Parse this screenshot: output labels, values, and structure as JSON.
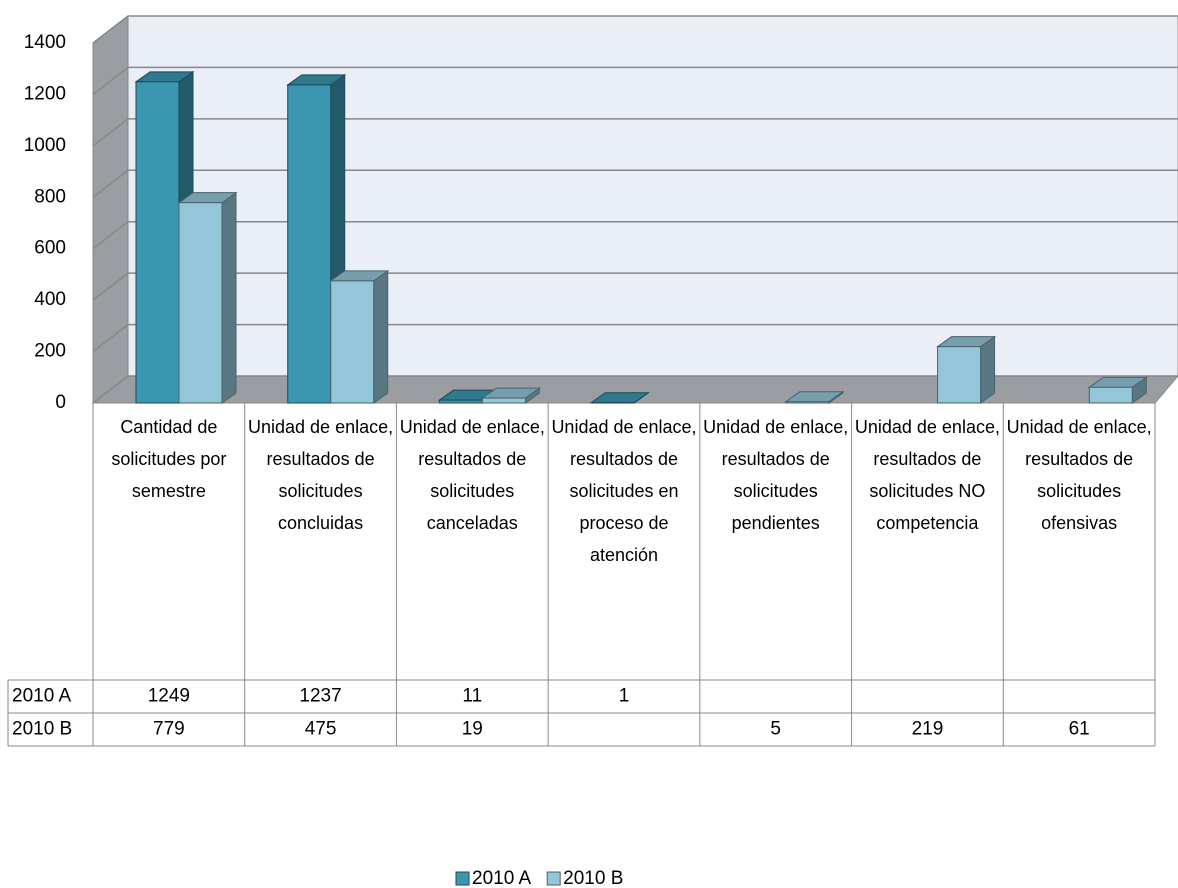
{
  "chart_data": {
    "type": "bar3d",
    "categories": [
      "Cantidad de solicitudes por semestre",
      "Unidad de enlace, resultados de solicitudes concluidas",
      "Unidad de enlace, resultados de solicitudes canceladas",
      "Unidad de enlace, resultados de solicitudes en proceso de atención",
      "Unidad de enlace, resultados de solicitudes pendientes",
      "Unidad de enlace, resultados de solicitudes NO competencia",
      "Unidad de enlace, resultados de solicitudes ofensivas"
    ],
    "series": [
      {
        "name": "2010 A",
        "color": "#3b96b1",
        "values": [
          1249,
          1237,
          11,
          1,
          null,
          null,
          null
        ]
      },
      {
        "name": "2010 B",
        "color": "#93c6d8",
        "values": [
          779,
          475,
          19,
          null,
          5,
          219,
          61
        ]
      }
    ],
    "ylim": [
      0,
      1400
    ],
    "yticks": [
      0,
      200,
      400,
      600,
      800,
      1000,
      1200,
      1400
    ],
    "grid": true,
    "legend": "bottom"
  }
}
